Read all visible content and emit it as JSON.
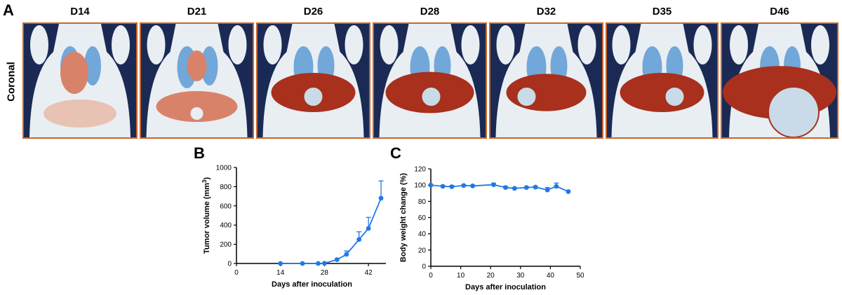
{
  "figure": {
    "panel_a_letter": "A",
    "panel_b_letter": "B",
    "panel_c_letter": "C",
    "row_label": "Coronal",
    "days": [
      "D14",
      "D21",
      "D26",
      "D28",
      "D32",
      "D35",
      "D46"
    ]
  },
  "colors": {
    "series": "#1f7ae8",
    "frame": "#c8662a",
    "background": "#1a2a55",
    "tissue": "#e9eef3",
    "lung": "#4a8fd0",
    "tumor": "#a8301c"
  },
  "chart_data": [
    {
      "type": "line",
      "id": "B",
      "title": "",
      "xlabel": "Days after inoculation",
      "ylabel_main": "Tumor volume (mm",
      "ylabel_sup": "3",
      "ylabel_end": ")",
      "xlim": [
        0,
        48
      ],
      "ylim": [
        0,
        1000
      ],
      "xticks": [
        0,
        14,
        28,
        42
      ],
      "yticks": [
        0,
        200,
        400,
        600,
        800,
        1000
      ],
      "series": [
        {
          "name": "Tumor volume",
          "x": [
            14,
            21,
            26,
            28,
            32,
            35,
            39,
            42,
            46
          ],
          "y": [
            0,
            0,
            0,
            2,
            40,
            95,
            250,
            365,
            680
          ],
          "err": [
            0,
            0,
            0,
            3,
            10,
            35,
            80,
            115,
            180
          ]
        }
      ]
    },
    {
      "type": "line",
      "id": "C",
      "title": "",
      "xlabel": "Days after inoculation",
      "ylabel": "Body weight change (%)",
      "xlim": [
        0,
        50
      ],
      "ylim": [
        0,
        120
      ],
      "xticks": [
        0,
        10,
        20,
        30,
        40,
        50
      ],
      "yticks": [
        0,
        20,
        40,
        60,
        80,
        100,
        120
      ],
      "series": [
        {
          "name": "Body weight change",
          "x": [
            0,
            4,
            7,
            11,
            14,
            21,
            25,
            28,
            32,
            35,
            39,
            42,
            46
          ],
          "y": [
            100,
            98.5,
            98,
            99.5,
            99,
            100.5,
            97,
            96,
            97,
            97.5,
            94,
            98.5,
            92
          ],
          "err": [
            0,
            1,
            1.5,
            1,
            1,
            2,
            1.5,
            1,
            1,
            1,
            3,
            4,
            1
          ]
        }
      ]
    }
  ]
}
